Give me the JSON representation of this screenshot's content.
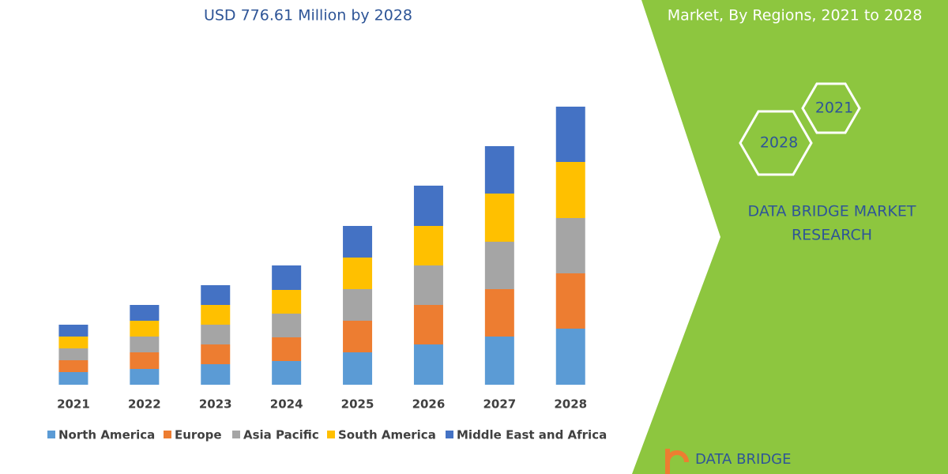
{
  "chart_data": {
    "type": "bar",
    "stacked": true,
    "title": "USD 776.61 Million by 2028",
    "categories": [
      "2021",
      "2022",
      "2023",
      "2024",
      "2025",
      "2026",
      "2027",
      "2028"
    ],
    "series": [
      {
        "name": "North America",
        "color": "#5b9bd5",
        "values": [
          16,
          20,
          26,
          30,
          41,
          51,
          61,
          71
        ]
      },
      {
        "name": "Europe",
        "color": "#ed7d31",
        "values": [
          15,
          21,
          25,
          30,
          40,
          50,
          60,
          70
        ]
      },
      {
        "name": "Asia Pacific",
        "color": "#a5a5a5",
        "values": [
          15,
          20,
          25,
          30,
          40,
          50,
          60,
          70
        ]
      },
      {
        "name": "South America",
        "color": "#ffc000",
        "values": [
          15,
          20,
          25,
          30,
          40,
          50,
          61,
          71
        ]
      },
      {
        "name": "Middle East and Africa",
        "color": "#4472c4",
        "values": [
          15,
          20,
          25,
          31,
          40,
          51,
          60,
          70
        ]
      }
    ],
    "ylim": [
      0,
      360
    ]
  },
  "side_panel": {
    "heading": "Market, By Regions, 2021 to 2028",
    "hexagons": [
      "2021",
      "2028"
    ],
    "company_lines": [
      "DATA BRIDGE MARKET",
      "RESEARCH"
    ],
    "logo": "DATA BRIDGE"
  }
}
